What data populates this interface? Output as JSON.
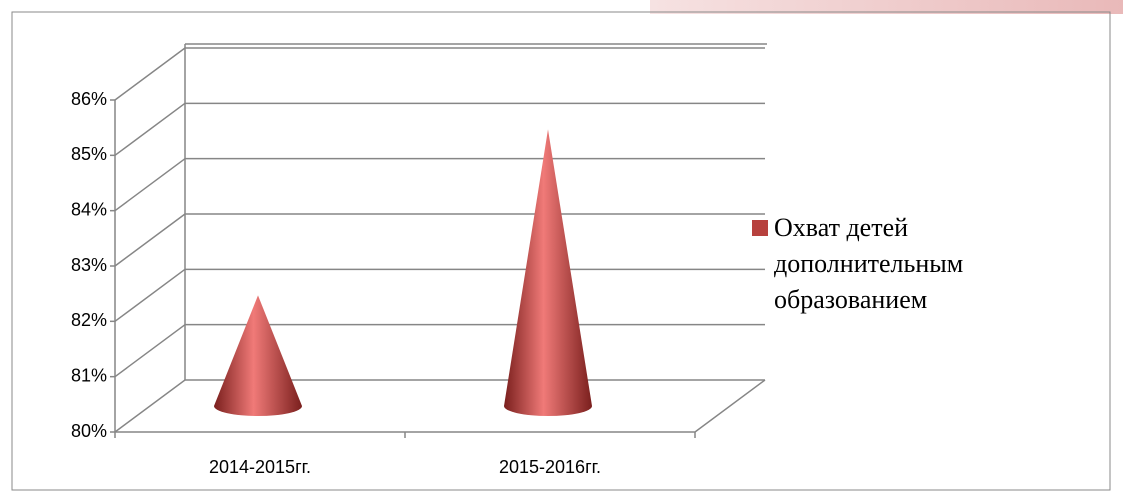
{
  "chart_data": {
    "type": "cone",
    "categories": [
      "2014-2015гг.",
      "2015-2016гг."
    ],
    "series": [
      {
        "name": "Охват детей дополнительным образованием",
        "color": "#b7413e",
        "values": [
          82,
          85
        ]
      }
    ],
    "ylim": [
      80,
      86
    ],
    "yticks": [
      {
        "value": 80,
        "label": "80%"
      },
      {
        "value": 81,
        "label": "81%"
      },
      {
        "value": 82,
        "label": "82%"
      },
      {
        "value": 83,
        "label": "83%"
      },
      {
        "value": 84,
        "label": "84%"
      },
      {
        "value": 85,
        "label": "85%"
      },
      {
        "value": 86,
        "label": "86%"
      }
    ],
    "grid": true,
    "legend": "right"
  }
}
